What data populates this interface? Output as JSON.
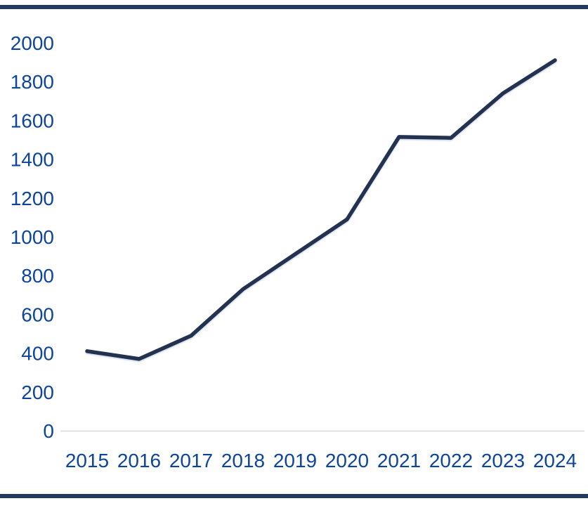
{
  "decorations": {
    "top_rule_color": "#223a61",
    "bottom_rule_color": "#223a61"
  },
  "chart_data": {
    "type": "line",
    "categories": [
      "2015",
      "2016",
      "2017",
      "2018",
      "2019",
      "2020",
      "2021",
      "2022",
      "2023",
      "2024"
    ],
    "values": [
      410,
      370,
      490,
      730,
      910,
      1090,
      1515,
      1510,
      1740,
      1910
    ],
    "y_ticks": [
      0,
      200,
      400,
      600,
      800,
      1000,
      1200,
      1400,
      1600,
      1800,
      2000
    ],
    "ylim": [
      0,
      2000
    ],
    "grid": "none",
    "legend_position": "none",
    "line_color": "#213150",
    "line_shadow_color": "#a8b8d8",
    "axis_line_color": "#d9d9d9",
    "label_color": "#0d459c"
  }
}
